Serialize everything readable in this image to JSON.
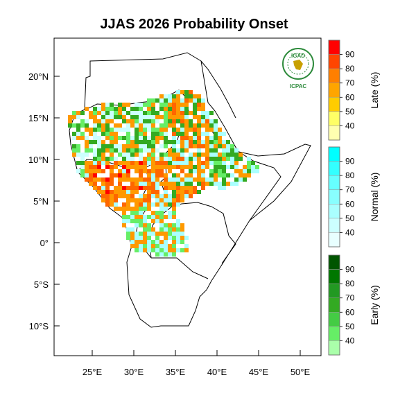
{
  "title": "JJAS 2026 Probability Onset",
  "logo": {
    "top_text": "IGAD",
    "bottom_text": "ICPAC"
  },
  "axes": {
    "lat_ticks": [
      "20°N",
      "15°N",
      "10°N",
      "5°N",
      "0°",
      "5°S",
      "10°S"
    ],
    "lon_ticks": [
      "25°E",
      "30°E",
      "35°E",
      "40°E",
      "45°E",
      "50°E"
    ]
  },
  "legends": [
    {
      "name": "late",
      "label": "Late (%)",
      "ticks": [
        "90",
        "80",
        "70",
        "60",
        "50",
        "40"
      ],
      "colors": [
        "#ff0000",
        "#ff4500",
        "#ff7f00",
        "#ffa500",
        "#ffcc00",
        "#ffff66",
        "#ffffb0"
      ]
    },
    {
      "name": "normal",
      "label": "Normal (%)",
      "ticks": [
        "90",
        "80",
        "70",
        "60",
        "50",
        "40"
      ],
      "colors": [
        "#00ffff",
        "#33ffff",
        "#66ffff",
        "#88ffff",
        "#aaffff",
        "#ccffff",
        "#e8ffff"
      ]
    },
    {
      "name": "early",
      "label": "Early (%)",
      "ticks": [
        "90",
        "80",
        "70",
        "60",
        "50",
        "40"
      ],
      "colors": [
        "#005500",
        "#007700",
        "#229922",
        "#33aa22",
        "#44cc44",
        "#66ee66",
        "#aaffaa"
      ]
    }
  ],
  "colors": {
    "late_main": "#ff9900",
    "late_dark": "#ff6600",
    "late_high": "#ff0000",
    "normal_main": "#aaffff",
    "normal_light": "#ccffff",
    "early_main": "#33aa22",
    "early_light": "#66ee66"
  }
}
